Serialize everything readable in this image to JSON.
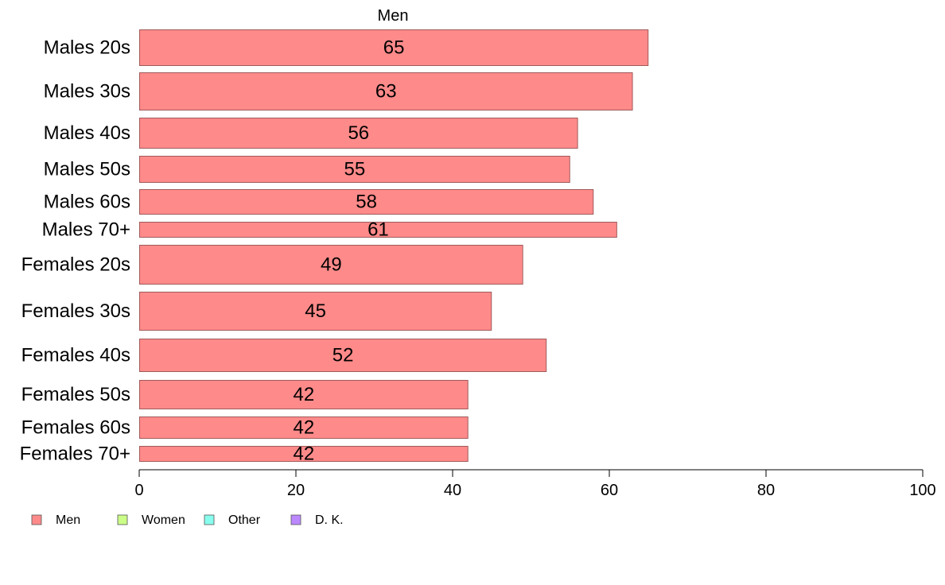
{
  "chart_data": {
    "type": "bar",
    "orientation": "horizontal",
    "title": "Men",
    "categories": [
      "Males 20s",
      "Males 30s",
      "Males 40s",
      "Males 50s",
      "Males 60s",
      "Males 70+",
      "Females 20s",
      "Females 30s",
      "Females 40s",
      "Females 50s",
      "Females 60s",
      "Females 70+"
    ],
    "values": [
      65,
      63,
      56,
      55,
      58,
      61,
      49,
      45,
      52,
      42,
      42,
      42
    ],
    "value_labels": [
      "65",
      "63",
      "56",
      "55",
      "58",
      "61",
      "49",
      "45",
      "52",
      "42",
      "42",
      "42"
    ],
    "xlim": [
      0,
      100
    ],
    "xticks": [
      "0",
      "20",
      "40",
      "60",
      "80",
      "100"
    ],
    "xlabel": "",
    "ylabel": "",
    "grid": false,
    "bar_color": "#ff8a8a",
    "bar_edge_color": "#a05a5a",
    "legend_placement": "bottom-left",
    "legend": [
      {
        "label": "Men",
        "color": "#ff8a8a"
      },
      {
        "label": "Women",
        "color": "#ccff88"
      },
      {
        "label": "Other",
        "color": "#88ffee"
      },
      {
        "label": "D. K.",
        "color": "#bb88ff"
      }
    ]
  }
}
